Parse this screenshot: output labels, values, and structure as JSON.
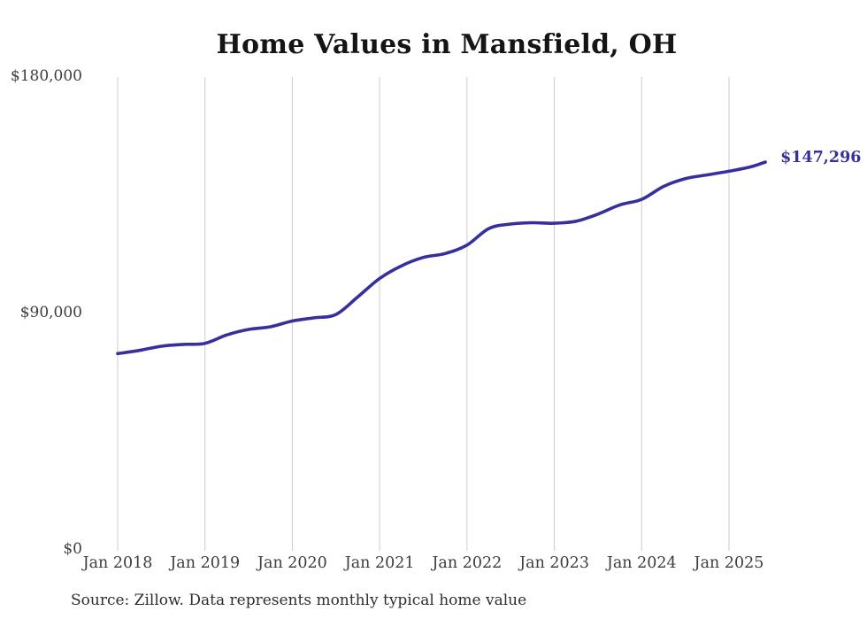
{
  "chart": {
    "title": "Home Values in Mansfield, OH",
    "source_note": "Source: Zillow. Data represents monthly typical home value",
    "colors": {
      "line": "#36309c",
      "grid": "#cccccc",
      "title_text": "#151515",
      "axis_text": "#3d3d3d",
      "source_text": "#2e2e2e",
      "background": "#ffffff"
    }
  },
  "chart_data": {
    "type": "line",
    "title": "Home Values in Mansfield, OH",
    "xlabel": "",
    "ylabel": "",
    "ylim": [
      0,
      180000
    ],
    "grid": "vertical-only",
    "legend": "none",
    "y_ticks": [
      {
        "label": "$180,000",
        "value": 180000
      },
      {
        "label": "$90,000",
        "value": 90000
      },
      {
        "label": "$0",
        "value": 0
      }
    ],
    "x_tick_labels": [
      "Jan 2018",
      "Jan 2019",
      "Jan 2020",
      "Jan 2021",
      "Jan 2022",
      "Jan 2023",
      "Jan 2024",
      "Jan 2025"
    ],
    "series_name": "Typical home value",
    "dates": [
      "Jan 2018",
      "Apr 2018",
      "Jul 2018",
      "Oct 2018",
      "Jan 2019",
      "Apr 2019",
      "Jul 2019",
      "Oct 2019",
      "Jan 2020",
      "Apr 2020",
      "Jul 2020",
      "Oct 2020",
      "Jan 2021",
      "Apr 2021",
      "Jul 2021",
      "Oct 2021",
      "Jan 2022",
      "Apr 2022",
      "Jul 2022",
      "Oct 2022",
      "Jan 2023",
      "Apr 2023",
      "Jul 2023",
      "Oct 2023",
      "Jan 2024",
      "Apr 2024",
      "Jul 2024",
      "Oct 2024",
      "Jan 2025",
      "Apr 2025",
      "Jun 2025"
    ],
    "months_from_start": [
      0,
      3,
      6,
      9,
      12,
      15,
      18,
      21,
      24,
      27,
      30,
      33,
      36,
      39,
      42,
      45,
      48,
      51,
      54,
      57,
      60,
      63,
      66,
      69,
      72,
      75,
      78,
      81,
      84,
      87,
      89
    ],
    "values": [
      74400,
      75600,
      77200,
      77900,
      78300,
      81500,
      83600,
      84600,
      86800,
      88000,
      89300,
      96000,
      103000,
      107800,
      111000,
      112500,
      115700,
      122000,
      123700,
      124200,
      124000,
      124800,
      127500,
      131000,
      133100,
      138000,
      141000,
      142400,
      143800,
      145500,
      147296
    ],
    "final_value": 147296,
    "final_label": "$147,296"
  }
}
